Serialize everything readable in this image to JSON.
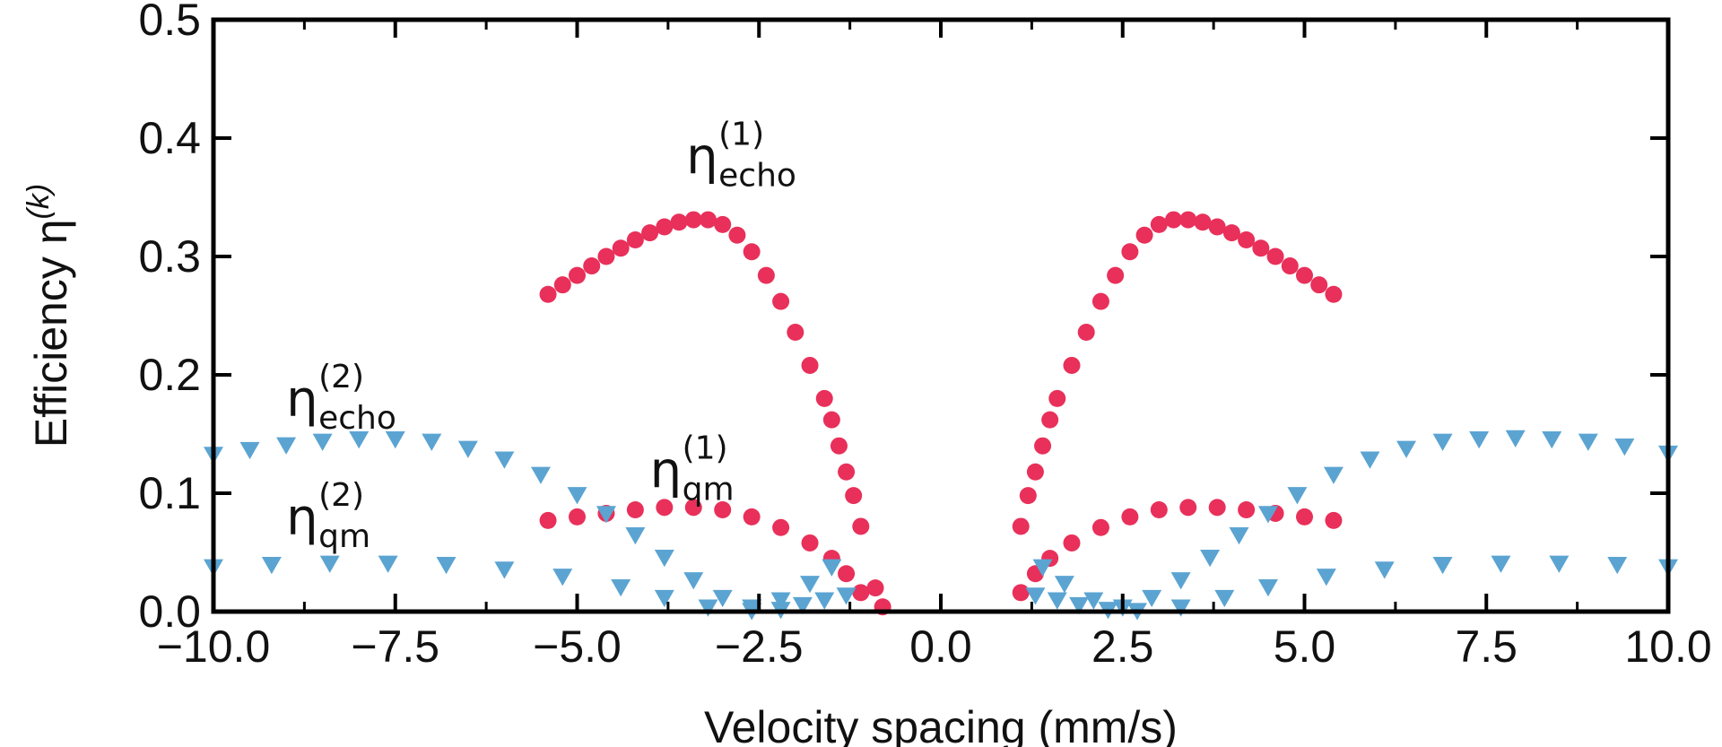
{
  "chart_data": {
    "type": "scatter",
    "xlabel": "Velocity spacing (mm/s)",
    "ylabel": "Efficiency η",
    "ylabel_sup": "(k)",
    "xlim": [
      -10,
      10
    ],
    "ylim": [
      0,
      0.5
    ],
    "x_ticks": [
      -10,
      -7.5,
      -5,
      -2.5,
      0,
      2.5,
      5,
      7.5,
      10
    ],
    "x_tick_labels": [
      "−10.0",
      "−7.5",
      "−5.0",
      "−2.5",
      "0.0",
      "2.5",
      "5.0",
      "7.5",
      "10.0"
    ],
    "y_ticks": [
      0,
      0.1,
      0.2,
      0.3,
      0.4,
      0.5
    ],
    "y_tick_labels": [
      "0.0",
      "0.1",
      "0.2",
      "0.3",
      "0.4",
      "0.5"
    ],
    "grid": false,
    "legend": "none",
    "series": [
      {
        "key": "echo1",
        "marker": "circle",
        "color": "#E8305A",
        "points": [
          [
            -5.4,
            0.268
          ],
          [
            -5.2,
            0.276
          ],
          [
            -5.0,
            0.284
          ],
          [
            -4.8,
            0.292
          ],
          [
            -4.6,
            0.3
          ],
          [
            -4.4,
            0.307
          ],
          [
            -4.2,
            0.314
          ],
          [
            -4.0,
            0.32
          ],
          [
            -3.8,
            0.325
          ],
          [
            -3.6,
            0.329
          ],
          [
            -3.4,
            0.331
          ],
          [
            -3.2,
            0.331
          ],
          [
            -3.0,
            0.327
          ],
          [
            -2.8,
            0.318
          ],
          [
            -2.6,
            0.304
          ],
          [
            -2.4,
            0.284
          ],
          [
            -2.2,
            0.262
          ],
          [
            -2.0,
            0.236
          ],
          [
            -1.8,
            0.208
          ],
          [
            -1.6,
            0.18
          ],
          [
            -1.5,
            0.162
          ],
          [
            -1.4,
            0.14
          ],
          [
            -1.3,
            0.118
          ],
          [
            -1.2,
            0.098
          ],
          [
            -1.1,
            0.072
          ],
          [
            -0.9,
            0.02
          ],
          [
            -0.8,
            0.004
          ],
          [
            1.1,
            0.072
          ],
          [
            1.2,
            0.098
          ],
          [
            1.3,
            0.118
          ],
          [
            1.4,
            0.14
          ],
          [
            1.5,
            0.162
          ],
          [
            1.6,
            0.18
          ],
          [
            1.8,
            0.208
          ],
          [
            2.0,
            0.236
          ],
          [
            2.2,
            0.262
          ],
          [
            2.4,
            0.284
          ],
          [
            2.6,
            0.304
          ],
          [
            2.8,
            0.318
          ],
          [
            3.0,
            0.327
          ],
          [
            3.2,
            0.331
          ],
          [
            3.4,
            0.331
          ],
          [
            3.6,
            0.329
          ],
          [
            3.8,
            0.325
          ],
          [
            4.0,
            0.32
          ],
          [
            4.2,
            0.314
          ],
          [
            4.4,
            0.307
          ],
          [
            4.6,
            0.3
          ],
          [
            4.8,
            0.292
          ],
          [
            5.0,
            0.284
          ],
          [
            5.2,
            0.276
          ],
          [
            5.4,
            0.268
          ]
        ]
      },
      {
        "key": "qm1",
        "marker": "circle",
        "color": "#E8305A",
        "points": [
          [
            -5.4,
            0.077
          ],
          [
            -5.0,
            0.08
          ],
          [
            -4.6,
            0.083
          ],
          [
            -4.2,
            0.086
          ],
          [
            -3.8,
            0.088
          ],
          [
            -3.4,
            0.088
          ],
          [
            -3.0,
            0.086
          ],
          [
            -2.6,
            0.08
          ],
          [
            -2.2,
            0.071
          ],
          [
            -1.8,
            0.058
          ],
          [
            -1.5,
            0.045
          ],
          [
            -1.3,
            0.032
          ],
          [
            -1.1,
            0.016
          ],
          [
            1.1,
            0.016
          ],
          [
            1.3,
            0.032
          ],
          [
            1.5,
            0.045
          ],
          [
            1.8,
            0.058
          ],
          [
            2.2,
            0.071
          ],
          [
            2.6,
            0.08
          ],
          [
            3.0,
            0.086
          ],
          [
            3.4,
            0.088
          ],
          [
            3.8,
            0.088
          ],
          [
            4.2,
            0.086
          ],
          [
            4.6,
            0.083
          ],
          [
            5.0,
            0.08
          ],
          [
            5.4,
            0.077
          ]
        ]
      },
      {
        "key": "echo2",
        "marker": "triangle-down",
        "color": "#5BA4D2",
        "points": [
          [
            -10.0,
            0.133
          ],
          [
            -9.5,
            0.137
          ],
          [
            -9.0,
            0.141
          ],
          [
            -8.5,
            0.144
          ],
          [
            -8.0,
            0.146
          ],
          [
            -7.5,
            0.146
          ],
          [
            -7.0,
            0.144
          ],
          [
            -6.5,
            0.138
          ],
          [
            -6.0,
            0.129
          ],
          [
            -5.5,
            0.116
          ],
          [
            -5.0,
            0.099
          ],
          [
            -4.6,
            0.083
          ],
          [
            -4.2,
            0.065
          ],
          [
            -3.8,
            0.046
          ],
          [
            -3.4,
            0.027
          ],
          [
            -3.0,
            0.012
          ],
          [
            -2.6,
            0.004
          ],
          [
            -2.2,
            0.01
          ],
          [
            -1.8,
            0.024
          ],
          [
            -1.5,
            0.038
          ],
          [
            1.4,
            0.038
          ],
          [
            1.7,
            0.024
          ],
          [
            2.1,
            0.01
          ],
          [
            2.5,
            0.004
          ],
          [
            2.9,
            0.012
          ],
          [
            3.3,
            0.027
          ],
          [
            3.7,
            0.046
          ],
          [
            4.1,
            0.065
          ],
          [
            4.5,
            0.083
          ],
          [
            4.9,
            0.099
          ],
          [
            5.4,
            0.116
          ],
          [
            5.9,
            0.129
          ],
          [
            6.4,
            0.138
          ],
          [
            6.9,
            0.144
          ],
          [
            7.4,
            0.146
          ],
          [
            7.9,
            0.147
          ],
          [
            8.4,
            0.146
          ],
          [
            8.9,
            0.144
          ],
          [
            9.4,
            0.14
          ],
          [
            10.0,
            0.134
          ]
        ]
      },
      {
        "key": "qm2",
        "marker": "triangle-down",
        "color": "#5BA4D2",
        "points": [
          [
            -10.0,
            0.038
          ],
          [
            -9.2,
            0.04
          ],
          [
            -8.4,
            0.041
          ],
          [
            -7.6,
            0.041
          ],
          [
            -6.8,
            0.04
          ],
          [
            -6.0,
            0.036
          ],
          [
            -5.2,
            0.03
          ],
          [
            -4.4,
            0.021
          ],
          [
            -3.8,
            0.012
          ],
          [
            -3.2,
            0.004
          ],
          [
            -2.6,
            0.001
          ],
          [
            -2.2,
            0.002
          ],
          [
            -1.9,
            0.006
          ],
          [
            -1.6,
            0.01
          ],
          [
            -1.3,
            0.014
          ],
          [
            1.3,
            0.014
          ],
          [
            1.6,
            0.01
          ],
          [
            1.9,
            0.006
          ],
          [
            2.3,
            0.002
          ],
          [
            2.7,
            0.001
          ],
          [
            3.3,
            0.004
          ],
          [
            3.9,
            0.012
          ],
          [
            4.5,
            0.021
          ],
          [
            5.3,
            0.03
          ],
          [
            6.1,
            0.036
          ],
          [
            6.9,
            0.04
          ],
          [
            7.7,
            0.041
          ],
          [
            8.5,
            0.041
          ],
          [
            9.3,
            0.04
          ],
          [
            10.0,
            0.038
          ]
        ]
      }
    ],
    "annotations": [
      {
        "key": "a_echo1",
        "base": "η",
        "sup": "(1)",
        "sub": "echo",
        "x": -3.5,
        "y": 0.37
      },
      {
        "key": "a_qm1",
        "base": "η",
        "sup": "(1)",
        "sub": "qm",
        "x": -4.0,
        "y": 0.105
      },
      {
        "key": "a_echo2",
        "base": "η",
        "sup": "(2)",
        "sub": "echo",
        "x": -9.0,
        "y": 0.165
      },
      {
        "key": "a_qm2",
        "base": "η",
        "sup": "(2)",
        "sub": "qm",
        "x": -9.0,
        "y": 0.065
      }
    ]
  }
}
